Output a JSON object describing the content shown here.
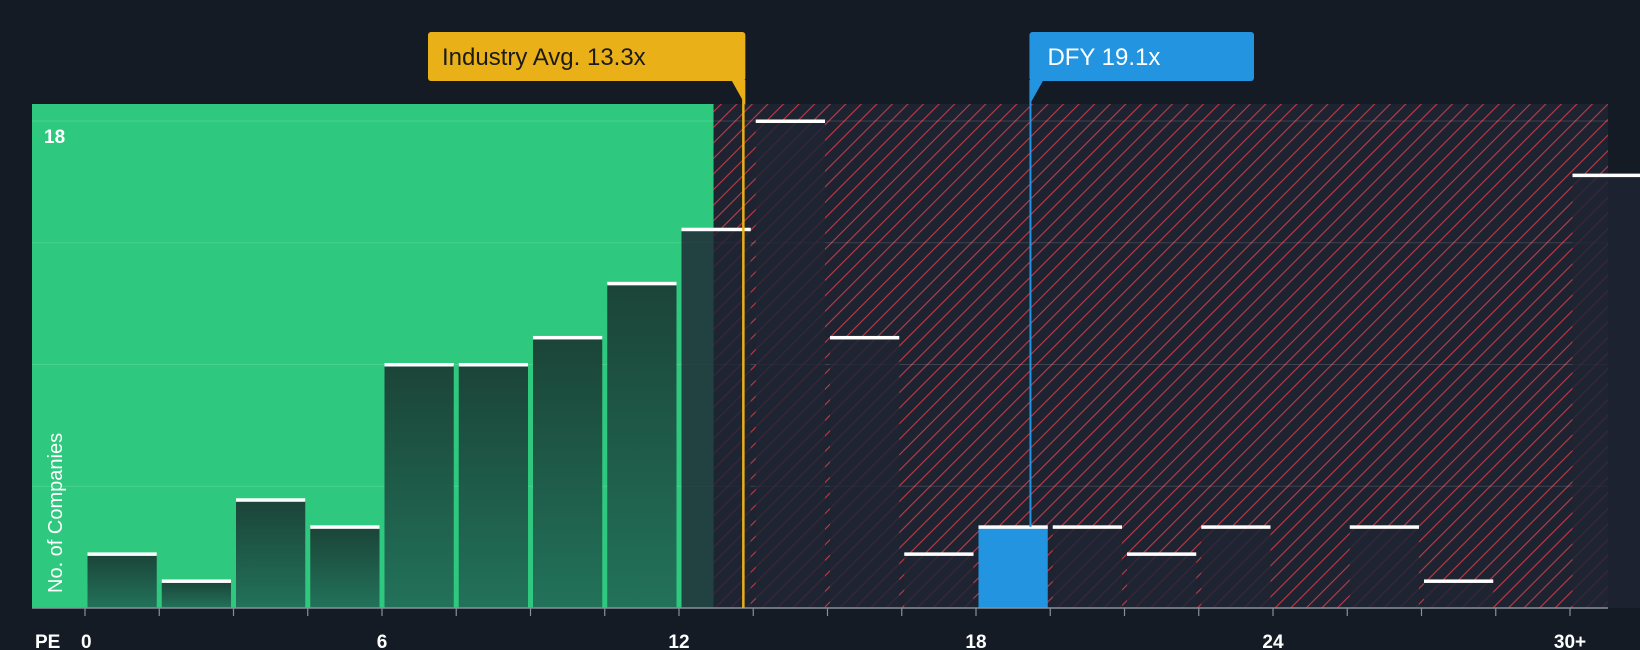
{
  "chart_data": {
    "type": "bar",
    "title": "",
    "xlabel": "PE",
    "ylabel": "No. of Companies",
    "xlim": [
      0,
      30.5
    ],
    "ylim": [
      0,
      18.6
    ],
    "x_ticks": [
      {
        "value": 0,
        "label": "0"
      },
      {
        "value": 6,
        "label": "6"
      },
      {
        "value": 12,
        "label": "12"
      },
      {
        "value": 18,
        "label": "18"
      },
      {
        "value": 24,
        "label": "24"
      },
      {
        "value": 30,
        "label": "30+"
      }
    ],
    "y_max_label": "18",
    "bin_width": 1.5,
    "bins": [
      {
        "start": 0.0,
        "count": 2
      },
      {
        "start": 1.5,
        "count": 1
      },
      {
        "start": 3.0,
        "count": 4
      },
      {
        "start": 4.5,
        "count": 3
      },
      {
        "start": 6.0,
        "count": 9
      },
      {
        "start": 7.5,
        "count": 9
      },
      {
        "start": 9.0,
        "count": 10
      },
      {
        "start": 10.5,
        "count": 12
      },
      {
        "start": 12.0,
        "count": 14
      },
      {
        "start": 13.5,
        "count": 18
      },
      {
        "start": 15.0,
        "count": 10
      },
      {
        "start": 16.5,
        "count": 2
      },
      {
        "start": 18.0,
        "count": 3,
        "highlight": true
      },
      {
        "start": 19.5,
        "count": 3
      },
      {
        "start": 21.0,
        "count": 2
      },
      {
        "start": 22.5,
        "count": 3
      },
      {
        "start": 24.0,
        "count": 0
      },
      {
        "start": 25.5,
        "count": 3
      },
      {
        "start": 27.0,
        "count": 1
      },
      {
        "start": 28.5,
        "count": 0
      },
      {
        "start": 30.0,
        "count": 16
      }
    ],
    "fair_region_end": 12.7,
    "industry_avg": {
      "value": 13.3,
      "label": "Industry Avg. 13.3x"
    },
    "company": {
      "ticker": "DFY",
      "value": 19.1,
      "label": "DFY 19.1x"
    },
    "colors": {
      "background": "#151b24",
      "fair_region": "#2ec97e",
      "bar_fair": "#1e4a3c",
      "bar_over": "#1f2433",
      "hatch": "#c23a44",
      "bar_top": "#ffffff",
      "industry": "#eab017",
      "company": "#2394e0",
      "gridline": "#ffffff"
    }
  }
}
